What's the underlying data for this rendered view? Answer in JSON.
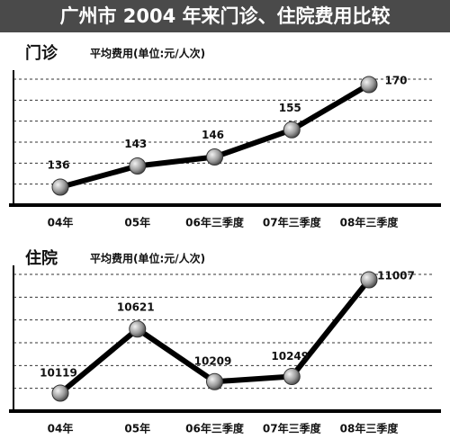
{
  "title": "广州市 2004 年来门诊、住院费用比较",
  "chart_data": [
    {
      "type": "line",
      "title": "门诊",
      "subtitle": "平均费用(单位:元/人次)",
      "categories": [
        "04年",
        "05年",
        "06年三季度",
        "07年三季度",
        "08年三季度"
      ],
      "values": [
        136,
        143,
        146,
        155,
        170
      ],
      "color": "#000000"
    },
    {
      "type": "line",
      "title": "住院",
      "subtitle": "平均费用(单位:元/人次)",
      "categories": [
        "04年",
        "05年",
        "06年三季度",
        "07年三季度",
        "08年三季度"
      ],
      "values": [
        10119,
        10621,
        10209,
        10249,
        11007
      ],
      "color": "#000000"
    }
  ]
}
